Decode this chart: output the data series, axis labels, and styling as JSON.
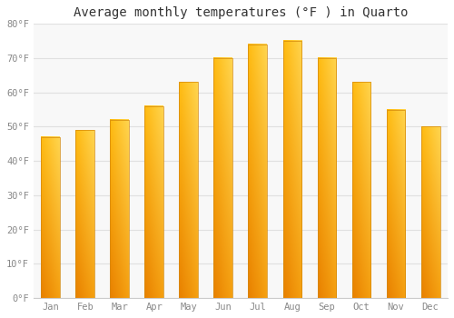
{
  "title": "Average monthly temperatures (°F ) in Quarto",
  "months": [
    "Jan",
    "Feb",
    "Mar",
    "Apr",
    "May",
    "Jun",
    "Jul",
    "Aug",
    "Sep",
    "Oct",
    "Nov",
    "Dec"
  ],
  "values": [
    47,
    49,
    52,
    56,
    63,
    70,
    74,
    75,
    70,
    63,
    55,
    50
  ],
  "bar_color_top": "#FFC200",
  "bar_color_bottom": "#F5920A",
  "bar_color_left": "#E88000",
  "background_color": "#FFFFFF",
  "plot_bg_color": "#F8F8F8",
  "ylim": [
    0,
    80
  ],
  "yticks": [
    0,
    10,
    20,
    30,
    40,
    50,
    60,
    70,
    80
  ],
  "ytick_labels": [
    "0°F",
    "10°F",
    "20°F",
    "30°F",
    "40°F",
    "50°F",
    "60°F",
    "70°F",
    "80°F"
  ],
  "title_fontsize": 10,
  "tick_fontsize": 7.5,
  "grid_color": "#E0E0E0",
  "font_family": "monospace",
  "bar_width": 0.55
}
